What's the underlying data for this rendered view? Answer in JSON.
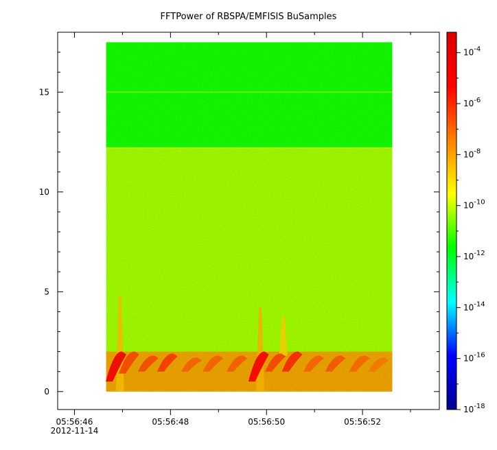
{
  "chart_data": {
    "type": "heatmap",
    "title": "FFTPower of RBSPA/EMFISIS  BuSamples",
    "xlabel": "",
    "ylabel": "",
    "x_ticks": [
      {
        "value": 0.0,
        "label": "05:56:46",
        "sublabel": "2012-11-14"
      },
      {
        "value": 2.0,
        "label": "05:56:48"
      },
      {
        "value": 4.0,
        "label": "05:56:50"
      },
      {
        "value": 6.0,
        "label": "05:56:52"
      }
    ],
    "x_minor_ticks": [
      1.0,
      3.0,
      5.0,
      7.0
    ],
    "xlim": [
      -0.35,
      7.6
    ],
    "data_xrange": [
      0.66,
      6.62
    ],
    "y_ticks": [
      0,
      5,
      10,
      15
    ],
    "ylim": [
      -0.9,
      18.0
    ],
    "data_yrange": [
      0.0,
      17.5
    ],
    "colorbar": {
      "scale": "log",
      "range_exponent": [
        -18,
        -3.2
      ],
      "tick_exponents": [
        -18,
        -16,
        -14,
        -12,
        -10,
        -8,
        -6,
        -4
      ],
      "tick_labels": [
        "10",
        "10",
        "10",
        "10",
        "10",
        "10",
        "10",
        "10"
      ],
      "tick_superscripts": [
        "-18",
        "-16",
        "-14",
        "-12",
        "-10",
        "-8",
        "-6",
        "-4"
      ],
      "colormap": [
        "#00008f",
        "#0000ff",
        "#00ffff",
        "#00ff00",
        "#ffff00",
        "#ff8000",
        "#ff0000",
        "#d80000"
      ]
    },
    "background_bands": [
      {
        "y_from": 0.0,
        "y_to": 12.2,
        "log_power": -10.3
      },
      {
        "y_from": 12.2,
        "y_to": 17.5,
        "log_power": -11.5
      }
    ],
    "line_features": [
      {
        "y": 15.0,
        "log_power": -10.8
      },
      {
        "y": 12.2,
        "log_power": -10.0
      }
    ],
    "wave_bursts": [
      {
        "x": 0.88,
        "y_low": 0.5,
        "y_high": 2.0,
        "log_power": -5.0
      },
      {
        "x": 1.15,
        "y_low": 0.9,
        "y_high": 2.0,
        "log_power": -6.5
      },
      {
        "x": 1.55,
        "y_low": 1.0,
        "y_high": 1.8,
        "log_power": -6.6
      },
      {
        "x": 1.95,
        "y_low": 1.0,
        "y_high": 1.9,
        "log_power": -6.3
      },
      {
        "x": 2.45,
        "y_low": 1.0,
        "y_high": 1.7,
        "log_power": -7.0
      },
      {
        "x": 2.9,
        "y_low": 1.0,
        "y_high": 1.8,
        "log_power": -7.0
      },
      {
        "x": 3.4,
        "y_low": 1.0,
        "y_high": 1.8,
        "log_power": -6.9
      },
      {
        "x": 3.85,
        "y_low": 0.5,
        "y_high": 2.0,
        "log_power": -5.3
      },
      {
        "x": 4.2,
        "y_low": 1.0,
        "y_high": 1.9,
        "log_power": -6.5
      },
      {
        "x": 4.55,
        "y_low": 1.0,
        "y_high": 2.0,
        "log_power": -6.0
      },
      {
        "x": 5.0,
        "y_low": 1.0,
        "y_high": 1.8,
        "log_power": -7.0
      },
      {
        "x": 5.45,
        "y_low": 1.0,
        "y_high": 1.8,
        "log_power": -6.8
      },
      {
        "x": 5.95,
        "y_low": 1.0,
        "y_high": 1.8,
        "log_power": -7.1
      },
      {
        "x": 6.35,
        "y_low": 1.0,
        "y_high": 1.7,
        "log_power": -7.4
      }
    ],
    "vertical_features": [
      {
        "x": 0.95,
        "y_low": 0.0,
        "y_high": 4.8,
        "log_power": -8.6
      },
      {
        "x": 3.87,
        "y_low": 0.0,
        "y_high": 4.2,
        "log_power": -8.4
      },
      {
        "x": 4.35,
        "y_low": 1.8,
        "y_high": 3.8,
        "log_power": -8.9
      }
    ],
    "bottom_band": {
      "y_from": 0.0,
      "y_to": 2.0,
      "log_power": -7.8
    },
    "grid": false,
    "legend": "none"
  }
}
